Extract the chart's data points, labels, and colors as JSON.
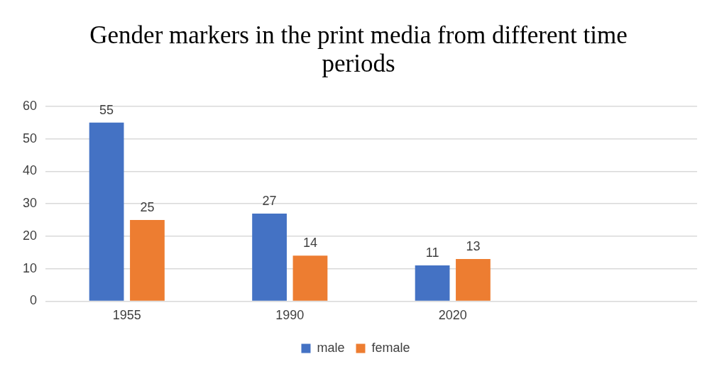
{
  "chart_data": {
    "type": "bar",
    "title": "Gender markers in the print media from different time periods",
    "categories": [
      "1955",
      "1990",
      "2020",
      null
    ],
    "series": [
      {
        "name": "male",
        "color": "#4472c4",
        "values": [
          55,
          27,
          11,
          null
        ]
      },
      {
        "name": "female",
        "color": "#ed7d31",
        "values": [
          25,
          14,
          13,
          null
        ]
      }
    ],
    "ylim": [
      0,
      60
    ],
    "yticks": [
      0,
      10,
      20,
      30,
      40,
      50,
      60
    ],
    "grid": "y",
    "legend": "bottom",
    "data_labels": true
  }
}
